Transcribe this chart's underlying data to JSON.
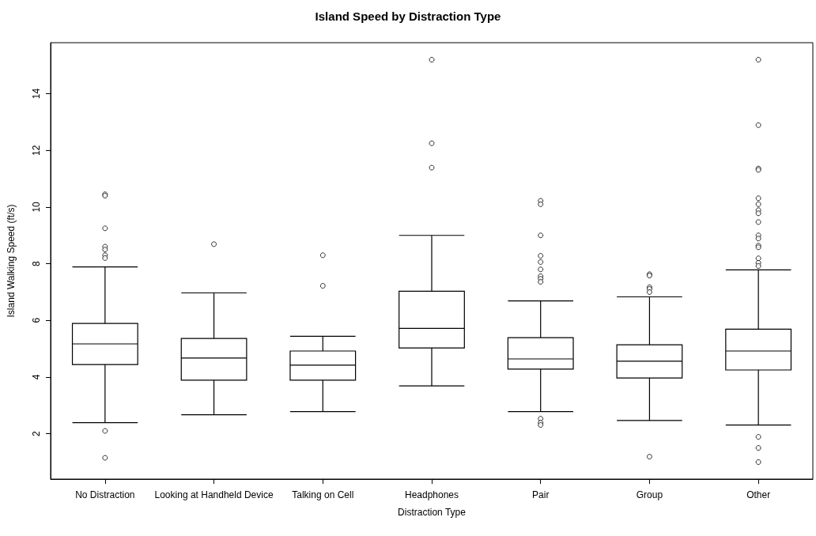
{
  "chart_data": {
    "type": "box",
    "title": "Island Speed by Distraction Type",
    "xlabel": "Distraction Type",
    "ylabel": "Island Walking Speed (ft/s)",
    "categories": [
      "No Distraction",
      "Looking at Handheld Device",
      "Talking on Cell",
      "Headphones",
      "Pair",
      "Group",
      "Other"
    ],
    "boxes": [
      {
        "low": 2.39,
        "q1": 4.44,
        "median": 5.17,
        "q3": 5.89,
        "high": 7.89,
        "outliers": [
          10.45,
          10.4,
          9.25,
          8.6,
          8.5,
          8.3,
          8.2,
          2.1,
          1.15
        ]
      },
      {
        "low": 2.67,
        "q1": 3.89,
        "median": 4.67,
        "q3": 5.36,
        "high": 6.97,
        "outliers": [
          8.69
        ]
      },
      {
        "low": 2.78,
        "q1": 3.89,
        "median": 4.42,
        "q3": 4.92,
        "high": 5.44,
        "outliers": [
          8.3,
          7.22
        ]
      },
      {
        "low": 3.69,
        "q1": 5.03,
        "median": 5.72,
        "q3": 7.03,
        "high": 9.0,
        "outliers": [
          15.2,
          12.25,
          11.39
        ]
      },
      {
        "low": 2.78,
        "q1": 4.28,
        "median": 4.64,
        "q3": 5.39,
        "high": 6.69,
        "outliers": [
          10.22,
          10.1,
          9.0,
          8.28,
          8.06,
          7.8,
          7.56,
          7.47,
          7.36,
          2.53,
          2.39,
          2.31
        ]
      },
      {
        "low": 2.47,
        "q1": 3.97,
        "median": 4.56,
        "q3": 5.14,
        "high": 6.83,
        "outliers": [
          7.63,
          7.58,
          7.17,
          7.11,
          7.0,
          1.19
        ]
      },
      {
        "low": 2.31,
        "q1": 4.25,
        "median": 4.92,
        "q3": 5.69,
        "high": 7.78,
        "outliers": [
          15.2,
          12.89,
          11.36,
          11.31,
          10.31,
          10.1,
          9.89,
          9.78,
          9.47,
          9.0,
          8.89,
          8.64,
          8.58,
          8.19,
          8.03,
          7.92,
          1.89,
          1.5,
          1.0
        ]
      }
    ],
    "ylim": [
      0.4,
      15.8
    ],
    "yticks": [
      2,
      4,
      6,
      8,
      10,
      12,
      14
    ]
  }
}
